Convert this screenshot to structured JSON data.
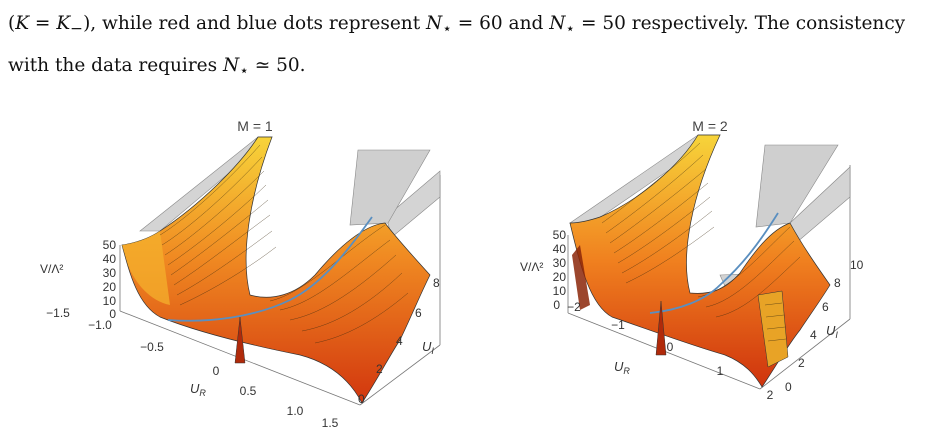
{
  "text": {
    "line1": {
      "a": "(",
      "b": "K",
      "c": " = ",
      "d": "K",
      "e": "−",
      "f": "), while red and blue dots represent ",
      "g": "N",
      "h": "⋆",
      "i": " = 60 and ",
      "j": "N",
      "k": "⋆",
      "l": " = 50 respectively. The consistency"
    },
    "line2": {
      "a": "with the data requires ",
      "b": "N",
      "c": "⋆",
      "d": " ≃ 50."
    }
  },
  "figures": [
    {
      "title": "M = 1",
      "z_label": "V/Λ²",
      "z_ticks": [
        "50",
        "40",
        "30",
        "20",
        "10",
        "0"
      ],
      "x_label": "U",
      "x_label_sub": "R",
      "x_ticks": [
        "−1.5",
        "−1.0",
        "−0.5",
        "0",
        "0.5",
        "1.0",
        "1.5"
      ],
      "y_label": "U",
      "y_label_sub": "I",
      "y_ticks": [
        "0",
        "2",
        "4",
        "6",
        "8"
      ]
    },
    {
      "title": "M = 2",
      "z_label": "V/Λ²",
      "z_ticks": [
        "50",
        "40",
        "30",
        "20",
        "10",
        "0"
      ],
      "x_label": "U",
      "x_label_sub": "R",
      "x_ticks": [
        "−2",
        "−1",
        "0",
        "1",
        "2"
      ],
      "y_label": "U",
      "y_label_sub": "I",
      "y_ticks": [
        "0",
        "2",
        "4",
        "6",
        "8",
        "10"
      ]
    }
  ],
  "colors": {
    "surface_top": "#f7d43a",
    "surface_mid": "#f07d1e",
    "surface_deep": "#d23a10",
    "plateau": "#d4d4d4",
    "trajectory": "#5a8fc0"
  }
}
